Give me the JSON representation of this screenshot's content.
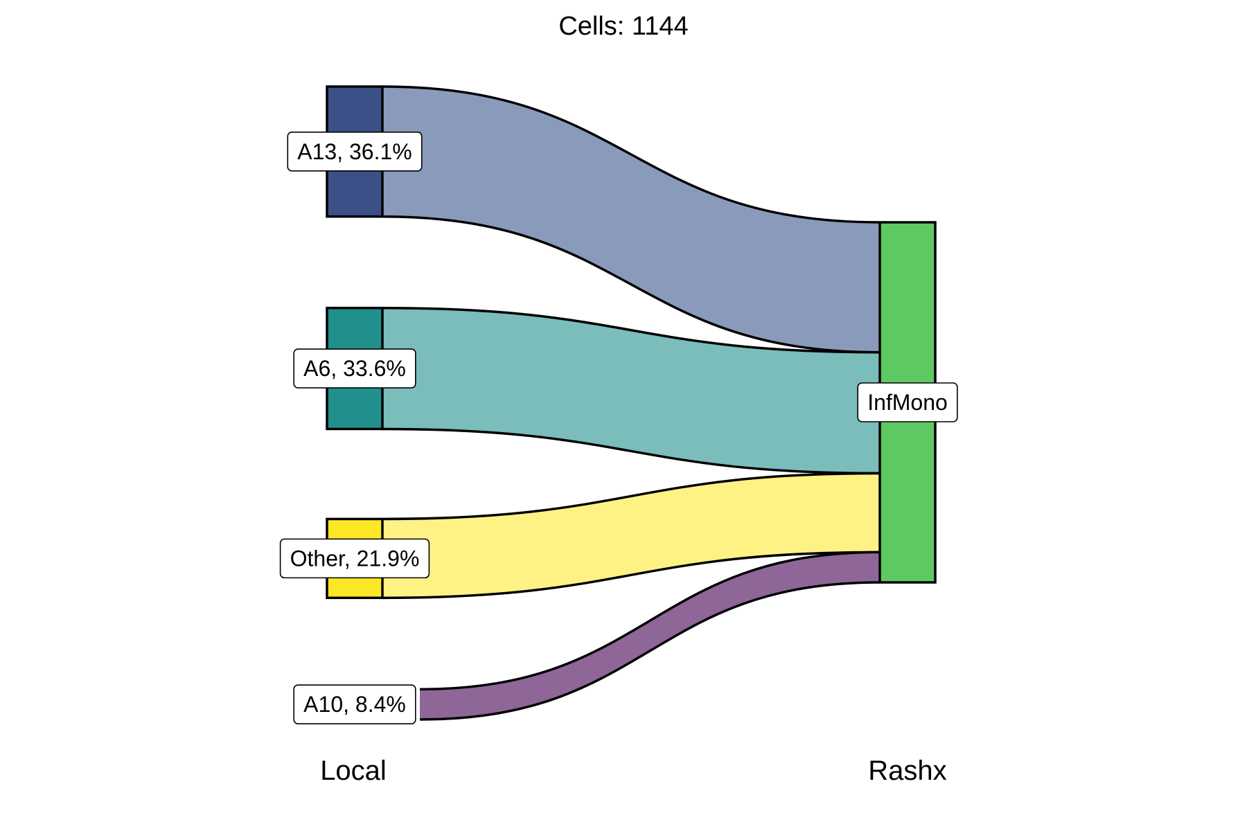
{
  "chart_data": {
    "type": "sankey",
    "title": "Cells:  1144",
    "total": 1144,
    "axes": [
      "Local",
      "Rashx"
    ],
    "left_nodes": [
      {
        "name": "A13",
        "label": "A13, 36.1%",
        "pct": 36.1,
        "color": "#3c5088",
        "flow_color": "#8a9aba"
      },
      {
        "name": "A6",
        "label": "A6, 33.6%",
        "pct": 33.6,
        "color": "#21908c",
        "flow_color": "#7abdbb"
      },
      {
        "name": "Other",
        "label": "Other, 21.9%",
        "pct": 21.9,
        "color": "#fbe726",
        "flow_color": "#fef284"
      },
      {
        "name": "A10",
        "label": "A10, 8.4%",
        "pct": 8.4,
        "color": "#8e6698",
        "flow_color": "#8e6698"
      }
    ],
    "right_nodes": [
      {
        "name": "InfMono",
        "label": "InfMono",
        "color": "#5ec962"
      }
    ],
    "flows": [
      {
        "from": "A13",
        "to": "InfMono",
        "pct": 36.1
      },
      {
        "from": "A6",
        "to": "InfMono",
        "pct": 33.6
      },
      {
        "from": "Other",
        "to": "InfMono",
        "pct": 21.9
      },
      {
        "from": "A10",
        "to": "InfMono",
        "pct": 8.4
      }
    ]
  }
}
